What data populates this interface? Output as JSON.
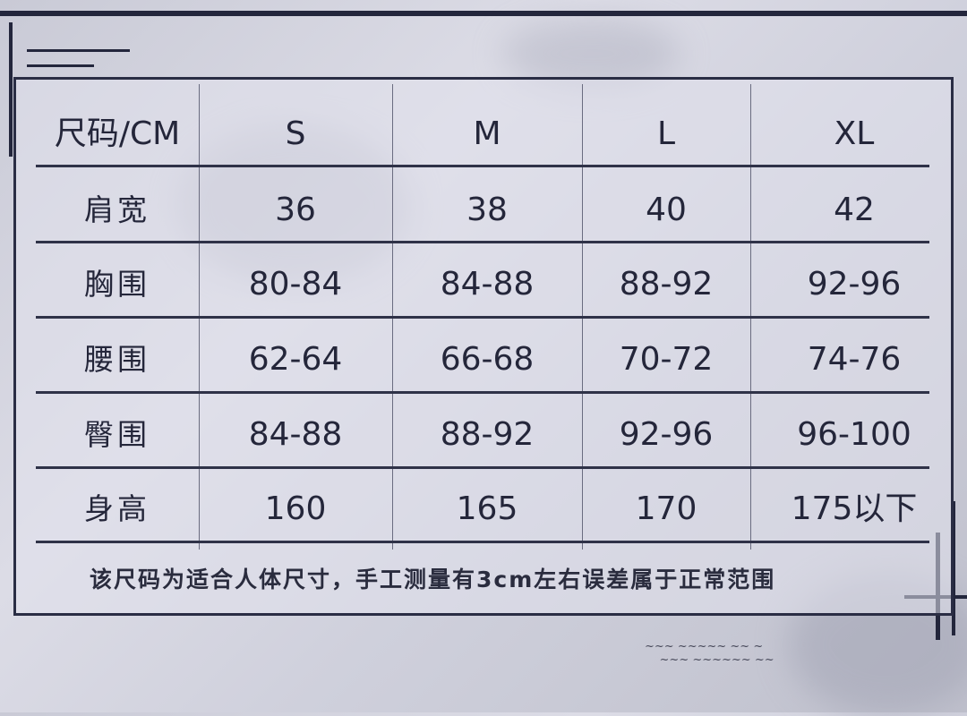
{
  "table": {
    "header": [
      "尺码/CM",
      "S",
      "M",
      "L",
      "XL"
    ],
    "rows": [
      {
        "label": "肩宽",
        "values": [
          "36",
          "38",
          "40",
          "42"
        ]
      },
      {
        "label": "胸围",
        "values": [
          "80-84",
          "84-88",
          "88-92",
          "92-96"
        ]
      },
      {
        "label": "腰围",
        "values": [
          "62-64",
          "66-68",
          "70-72",
          "74-76"
        ]
      },
      {
        "label": "臀围",
        "values": [
          "84-88",
          "88-92",
          "92-96",
          "96-100"
        ]
      },
      {
        "label": "身高",
        "values": [
          "160",
          "165",
          "170",
          "175以下"
        ]
      }
    ]
  },
  "note": "该尺码为适合人体尺寸，手工测量有3cm左右误差属于正常范围",
  "colors": {
    "frame": "#2a2d44",
    "text": "#24263a",
    "background": "#d4d5e0"
  }
}
